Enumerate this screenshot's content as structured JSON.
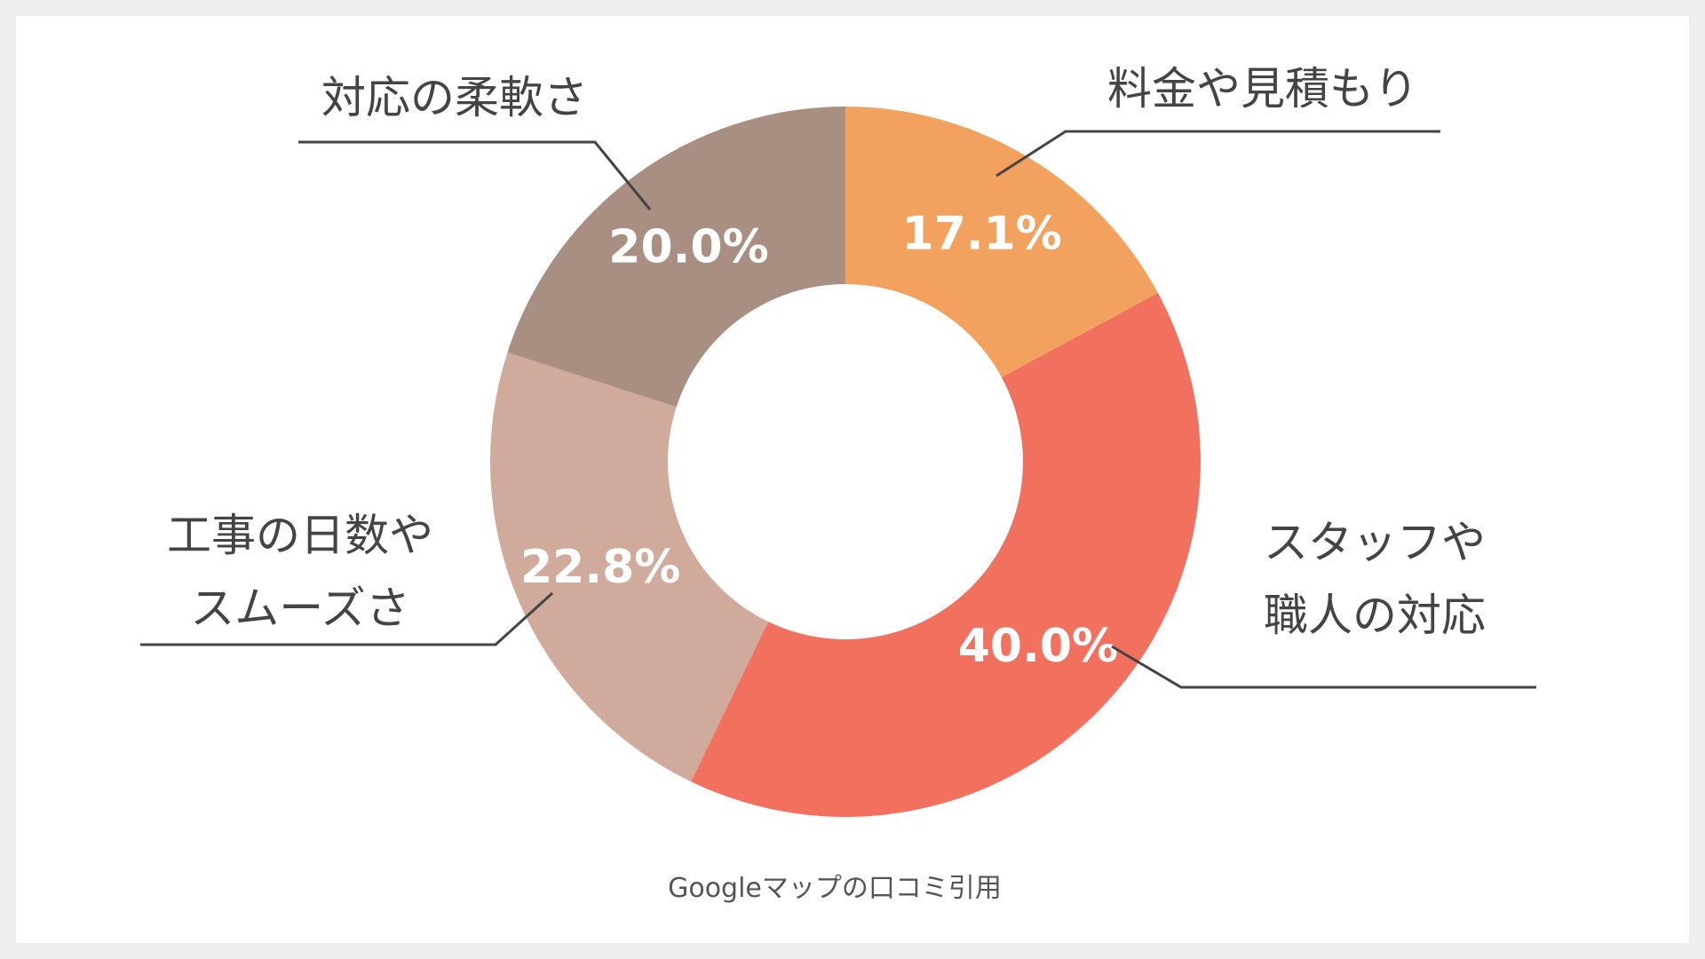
{
  "chart_data": {
    "type": "pie",
    "donut": true,
    "slices": [
      {
        "label_lines": [
          "料金や見積もり"
        ],
        "value": 17.1,
        "value_label": "17.1%",
        "color": "#F3A15E"
      },
      {
        "label_lines": [
          "スタッフや",
          "職人の対応"
        ],
        "value": 40.0,
        "value_label": "40.0%",
        "color": "#F2705E"
      },
      {
        "label_lines": [
          "工事の日数や",
          "スムーズさ"
        ],
        "value": 22.8,
        "value_label": "22.8%",
        "color": "#D0AA9B"
      },
      {
        "label_lines": [
          "対応の柔軟さ"
        ],
        "value": 20.0,
        "value_label": "20.0%",
        "color": "#A98E82"
      }
    ],
    "legend": "none"
  },
  "source_note": "Googleマップの口コミ引用"
}
